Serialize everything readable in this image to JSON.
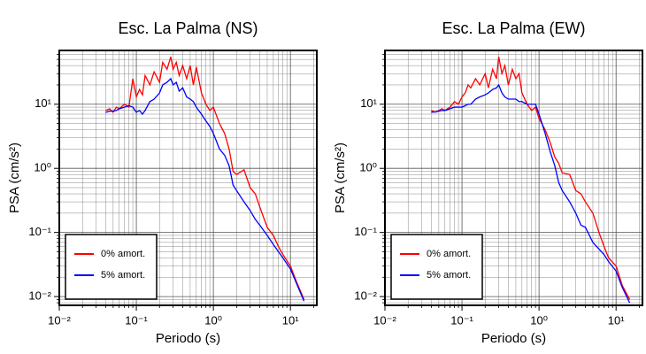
{
  "chart_data": [
    {
      "type": "line",
      "title": "Esc. La Palma (NS)",
      "x_label": "Periodo (s)",
      "y_label": "PSA (cm/s²)",
      "log_x": true,
      "log_y": true,
      "grid": true,
      "legend": "lower left",
      "xlim": [
        0.01,
        22
      ],
      "ylim": [
        0.0073,
        69
      ],
      "xticks": [
        {
          "value": 0.01,
          "label": "10⁻²"
        },
        {
          "value": 0.1,
          "label": "10⁻¹"
        },
        {
          "value": 1,
          "label": "10⁰"
        },
        {
          "value": 10,
          "label": "10¹"
        }
      ],
      "yticks": [
        {
          "value": 0.01,
          "label": "10⁻²"
        },
        {
          "value": 0.1,
          "label": "10⁻¹"
        },
        {
          "value": 1,
          "label": "10⁰"
        },
        {
          "value": 10,
          "label": "10¹"
        }
      ],
      "xticks_minor": [
        0.02,
        0.03,
        0.04,
        0.05,
        0.06,
        0.07,
        0.08,
        0.09,
        0.2,
        0.3,
        0.4,
        0.5,
        0.6,
        0.7,
        0.8,
        0.9,
        2,
        3,
        4,
        5,
        6,
        7,
        8,
        9,
        20
      ],
      "yticks_minor": [
        0.008,
        0.009,
        0.02,
        0.03,
        0.04,
        0.05,
        0.06,
        0.07,
        0.08,
        0.09,
        0.2,
        0.3,
        0.4,
        0.5,
        0.6,
        0.7,
        0.8,
        0.9,
        2,
        3,
        4,
        5,
        6,
        7,
        8,
        9,
        20,
        30,
        40,
        50,
        60
      ],
      "x": [
        0.04,
        0.045,
        0.05,
        0.055,
        0.06,
        0.07,
        0.08,
        0.09,
        0.1,
        0.11,
        0.12,
        0.13,
        0.15,
        0.17,
        0.2,
        0.22,
        0.25,
        0.28,
        0.3,
        0.33,
        0.36,
        0.4,
        0.45,
        0.5,
        0.55,
        0.6,
        0.7,
        0.8,
        0.9,
        1.0,
        1.2,
        1.4,
        1.6,
        1.8,
        2.0,
        2.5,
        3.0,
        3.5,
        4.0,
        5.0,
        6.0,
        7,
        8,
        10,
        12,
        15
      ],
      "series": [
        {
          "name": "0% amort.",
          "color": "#ff0000",
          "values": [
            8,
            8.5,
            7.5,
            9,
            8.5,
            10,
            9,
            25,
            13,
            17,
            14,
            28,
            20,
            32,
            22,
            45,
            35,
            55,
            35,
            45,
            28,
            40,
            25,
            40,
            20,
            38,
            15,
            10,
            8,
            9,
            5,
            3.5,
            2,
            0.9,
            0.8,
            0.95,
            0.5,
            0.4,
            0.25,
            0.12,
            0.09,
            0.06,
            0.045,
            0.03,
            0.017,
            0.009
          ]
        },
        {
          "name": "5% amort.",
          "color": "#0000ff",
          "values": [
            7.5,
            7.8,
            7.8,
            8,
            8.5,
            9,
            9.5,
            9,
            7.5,
            8,
            7,
            8,
            11,
            12,
            15,
            20,
            22,
            25,
            20,
            22,
            16,
            18,
            13,
            12,
            11,
            9,
            7,
            5.5,
            4.5,
            3.5,
            2,
            1.6,
            1.1,
            0.55,
            0.45,
            0.3,
            0.22,
            0.16,
            0.13,
            0.09,
            0.065,
            0.05,
            0.04,
            0.027,
            0.016,
            0.0085
          ]
        }
      ]
    },
    {
      "type": "line",
      "title": "Esc. La Palma (EW)",
      "x_label": "Periodo (s)",
      "y_label": "PSA (cm/s²)",
      "log_x": true,
      "log_y": true,
      "grid": true,
      "legend": "lower left",
      "xlim": [
        0.01,
        22
      ],
      "ylim": [
        0.0073,
        69
      ],
      "xticks": [
        {
          "value": 0.01,
          "label": "10⁻²"
        },
        {
          "value": 0.1,
          "label": "10⁻¹"
        },
        {
          "value": 1,
          "label": "10⁰"
        },
        {
          "value": 10,
          "label": "10¹"
        }
      ],
      "yticks": [
        {
          "value": 0.01,
          "label": "10⁻²"
        },
        {
          "value": 0.1,
          "label": "10⁻¹"
        },
        {
          "value": 1,
          "label": "10⁰"
        },
        {
          "value": 10,
          "label": "10¹"
        }
      ],
      "xticks_minor": [
        0.02,
        0.03,
        0.04,
        0.05,
        0.06,
        0.07,
        0.08,
        0.09,
        0.2,
        0.3,
        0.4,
        0.5,
        0.6,
        0.7,
        0.8,
        0.9,
        2,
        3,
        4,
        5,
        6,
        7,
        8,
        9,
        20
      ],
      "yticks_minor": [
        0.008,
        0.009,
        0.02,
        0.03,
        0.04,
        0.05,
        0.06,
        0.07,
        0.08,
        0.09,
        0.2,
        0.3,
        0.4,
        0.5,
        0.6,
        0.7,
        0.8,
        0.9,
        2,
        3,
        4,
        5,
        6,
        7,
        8,
        9,
        20,
        30,
        40,
        50,
        60
      ],
      "x": [
        0.04,
        0.045,
        0.05,
        0.055,
        0.06,
        0.07,
        0.08,
        0.09,
        0.1,
        0.11,
        0.12,
        0.13,
        0.15,
        0.17,
        0.2,
        0.22,
        0.25,
        0.28,
        0.3,
        0.33,
        0.36,
        0.4,
        0.45,
        0.5,
        0.55,
        0.6,
        0.7,
        0.8,
        0.9,
        1.0,
        1.2,
        1.4,
        1.6,
        1.8,
        2.0,
        2.5,
        3.0,
        3.5,
        4.0,
        5.0,
        6.0,
        7,
        8,
        10,
        12,
        15
      ],
      "series": [
        {
          "name": "0% amort.",
          "color": "#ff0000",
          "values": [
            8,
            7.5,
            8,
            8.5,
            8,
            9,
            11,
            10,
            13,
            15,
            20,
            18,
            25,
            20,
            30,
            18,
            35,
            25,
            55,
            30,
            40,
            20,
            35,
            25,
            30,
            15,
            10,
            8,
            9,
            6,
            4,
            2.5,
            1.5,
            1.2,
            0.85,
            0.8,
            0.45,
            0.4,
            0.3,
            0.2,
            0.1,
            0.06,
            0.04,
            0.03,
            0.015,
            0.009
          ]
        },
        {
          "name": "5% amort.",
          "color": "#0000ff",
          "values": [
            7.5,
            7.6,
            7.8,
            8,
            8,
            8.5,
            9,
            9,
            9,
            9.5,
            10,
            10,
            12,
            13,
            14,
            15,
            17,
            18,
            20,
            15,
            13,
            12,
            12,
            12,
            11,
            11,
            10,
            10,
            10,
            7,
            3.5,
            1.8,
            1.1,
            0.6,
            0.45,
            0.3,
            0.2,
            0.13,
            0.12,
            0.07,
            0.055,
            0.045,
            0.035,
            0.025,
            0.014,
            0.008
          ]
        }
      ]
    }
  ]
}
